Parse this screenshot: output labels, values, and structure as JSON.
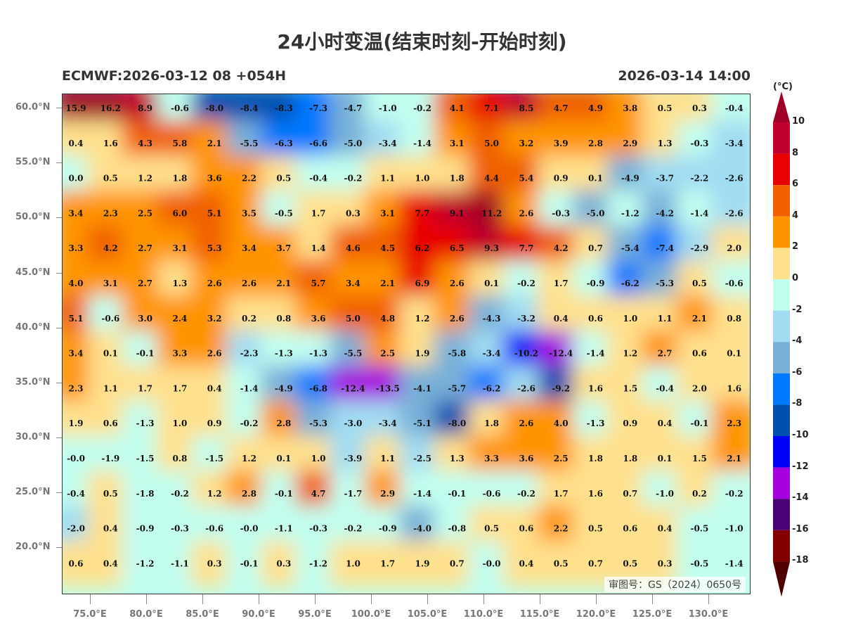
{
  "header": {
    "title": "24小时变温(结束时刻-开始时刻)",
    "model_run": "ECMWF:2026-03-12 08 +054H",
    "valid_time": "2026-03-14 14:00"
  },
  "map": {
    "extent_lon": [
      72.5,
      133.75
    ],
    "extent_lat": [
      15.7,
      61.3
    ],
    "lat_labels": [
      "60.0°N",
      "55.0°N",
      "50.0°N",
      "45.0°N",
      "40.0°N",
      "35.0°N",
      "30.0°N",
      "25.0°N",
      "20.0°N"
    ],
    "lat_values": [
      60,
      55,
      50,
      45,
      40,
      35,
      30,
      25,
      20
    ],
    "lon_labels": [
      "75.0°E",
      "80.0°E",
      "85.0°E",
      "90.0°E",
      "95.0°E",
      "100.0°E",
      "105.0°E",
      "110.0°E",
      "115.0°E",
      "120.0°E",
      "125.0°E",
      "130.0°E"
    ],
    "lon_values": [
      75,
      80,
      85,
      90,
      95,
      100,
      105,
      110,
      115,
      120,
      125,
      130
    ],
    "approval_number": "审图号：GS（2024）0650号",
    "grid_values": [
      [
        "15.9",
        "16.2",
        "8.9",
        "-0.6",
        "-8.0",
        "-8.4",
        "-8.3",
        "-7.3",
        "-4.7",
        "-1.0",
        "-0.2",
        "4.1",
        "7.1",
        "8.5",
        "4.7",
        "4.9",
        "3.8",
        "0.5",
        "0.3",
        "-0.4"
      ],
      [
        "0.4",
        "1.6",
        "4.3",
        "5.8",
        "2.1",
        "-5.5",
        "-6.3",
        "-6.6",
        "-5.0",
        "-3.4",
        "-1.4",
        "3.1",
        "5.0",
        "3.2",
        "3.9",
        "2.8",
        "2.9",
        "1.3",
        "-0.3",
        "-3.4"
      ],
      [
        "0.0",
        "0.5",
        "1.2",
        "1.8",
        "3.6",
        "2.2",
        "0.5",
        "-0.4",
        "-0.2",
        "1.1",
        "1.0",
        "1.8",
        "4.4",
        "5.4",
        "0.9",
        "0.1",
        "-4.9",
        "-3.7",
        "-2.2",
        "-2.6"
      ],
      [
        "3.4",
        "2.3",
        "2.5",
        "6.0",
        "5.1",
        "3.5",
        "-0.5",
        "1.7",
        "0.3",
        "3.1",
        "7.7",
        "9.1",
        "11.2",
        "2.6",
        "-0.3",
        "-5.0",
        "-1.2",
        "-4.2",
        "-1.4",
        "-2.6"
      ],
      [
        "3.3",
        "4.2",
        "2.7",
        "3.1",
        "5.3",
        "3.4",
        "3.7",
        "1.4",
        "4.6",
        "4.5",
        "6.2",
        "6.5",
        "9.3",
        "7.7",
        "4.2",
        "0.7",
        "-5.4",
        "-7.4",
        "-2.9",
        "2.0"
      ],
      [
        "4.0",
        "3.1",
        "2.7",
        "1.3",
        "2.6",
        "2.6",
        "2.1",
        "5.7",
        "3.4",
        "2.1",
        "6.9",
        "2.6",
        "0.1",
        "-0.2",
        "1.7",
        "-0.9",
        "-6.2",
        "-5.3",
        "0.5",
        "-0.6"
      ],
      [
        "5.1",
        "-0.6",
        "3.0",
        "2.4",
        "3.2",
        "0.2",
        "0.8",
        "3.6",
        "5.0",
        "4.8",
        "1.2",
        "2.6",
        "-4.3",
        "-3.2",
        "0.4",
        "0.6",
        "1.0",
        "1.1",
        "2.1",
        "0.8"
      ],
      [
        "3.4",
        "0.1",
        "-0.1",
        "3.3",
        "2.6",
        "-2.3",
        "-1.3",
        "-1.3",
        "-5.5",
        "2.5",
        "1.9",
        "-5.8",
        "-3.4",
        "-10.2",
        "-12.4",
        "-1.4",
        "1.2",
        "2.7",
        "0.6",
        "0.1"
      ],
      [
        "2.3",
        "1.1",
        "1.7",
        "1.7",
        "0.4",
        "-1.4",
        "-4.9",
        "-6.8",
        "-12.4",
        "-13.5",
        "-4.1",
        "-5.7",
        "-6.2",
        "-2.6",
        "-9.2",
        "1.6",
        "1.5",
        "-0.4",
        "2.0",
        "1.6"
      ],
      [
        "1.9",
        "0.6",
        "-1.3",
        "1.0",
        "0.9",
        "-0.2",
        "2.8",
        "-5.3",
        "-3.0",
        "-3.4",
        "-5.1",
        "-8.0",
        "1.8",
        "2.6",
        "4.0",
        "-1.3",
        "0.9",
        "0.4",
        "-0.1",
        "2.3"
      ],
      [
        "-0.0",
        "-1.9",
        "-1.5",
        "0.8",
        "-1.5",
        "1.2",
        "0.1",
        "1.0",
        "-3.9",
        "1.1",
        "-2.5",
        "1.3",
        "3.3",
        "3.6",
        "2.5",
        "1.8",
        "1.8",
        "0.1",
        "1.5",
        "2.1"
      ],
      [
        "-0.4",
        "0.5",
        "-1.8",
        "-0.2",
        "1.2",
        "2.8",
        "-0.1",
        "4.7",
        "-1.7",
        "2.9",
        "-1.4",
        "-0.1",
        "-0.6",
        "-0.2",
        "1.7",
        "1.6",
        "0.7",
        "-1.0",
        "0.2",
        "-0.2"
      ],
      [
        "-2.0",
        "0.4",
        "-0.9",
        "-0.3",
        "-0.6",
        "-0.0",
        "-1.1",
        "-0.3",
        "-0.2",
        "-0.9",
        "-4.0",
        "-0.8",
        "0.5",
        "0.6",
        "2.2",
        "0.5",
        "0.6",
        "0.4",
        "-0.5",
        "-1.0"
      ],
      [
        "0.6",
        "0.4",
        "-1.2",
        "-1.1",
        "0.3",
        "-0.1",
        "0.3",
        "-1.2",
        "1.0",
        "1.7",
        "1.9",
        "0.7",
        "-0.0",
        "0.4",
        "0.5",
        "0.7",
        "0.5",
        "0.3",
        "-0.5",
        "-1.4"
      ]
    ]
  },
  "colorbar": {
    "unit": "(°C)",
    "labels": [
      "10",
      "8",
      "6",
      "4",
      "2",
      "0",
      "-2",
      "-4",
      "-6",
      "-8",
      "-10",
      "-12",
      "-14",
      "-16",
      "-18"
    ],
    "levels": [
      10,
      8,
      6,
      4,
      2,
      0,
      -2,
      -4,
      -6,
      -8,
      -10,
      -12,
      -14,
      -16,
      -18
    ],
    "colors_top_to_bottom": [
      "#c0002c",
      "#e80000",
      "#f06000",
      "#ff9400",
      "#ffe08c",
      "#c2fff0",
      "#a0dcf2",
      "#78b0d8",
      "#0078ff",
      "#0050b0",
      "#0000f8",
      "#a400e0",
      "#4c0078",
      "#800000"
    ],
    "over_color": "#a00028",
    "under_color": "#500000"
  }
}
